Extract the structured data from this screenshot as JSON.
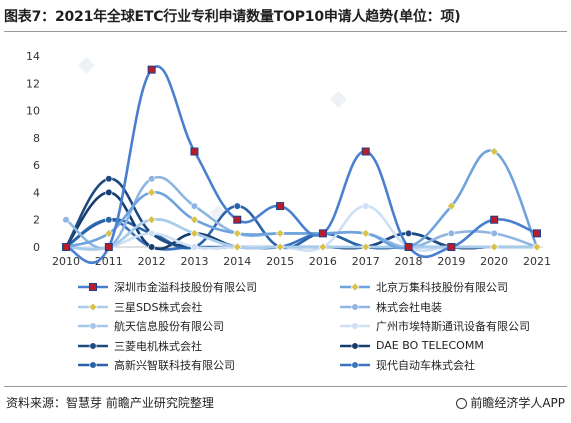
{
  "header": {
    "title": "图表7：2021年全球ETC行业专利申请数量TOP10申请人趋势(单位：项)"
  },
  "footer": {
    "source": "资料来源：智慧芽 前瞻产业研究院整理",
    "brand": "前瞻经济学人APP"
  },
  "chart_data": {
    "type": "line",
    "title": "图表7：2021年全球ETC行业专利申请数量TOP10申请人趋势(单位：项)",
    "x": [
      "2010",
      "2011",
      "2012",
      "2013",
      "2014",
      "2015",
      "2016",
      "2017",
      "2018",
      "2019",
      "2020",
      "2021"
    ],
    "ylim": [
      0,
      14
    ],
    "yticks": [
      0,
      2,
      4,
      6,
      8,
      10,
      12,
      14
    ],
    "grid": false,
    "legend_position": "bottom",
    "series": [
      {
        "name": "深圳市金溢科技股份有限公司",
        "color": "#4a7fd0",
        "marker": "square-red",
        "values": [
          0,
          0,
          13,
          7,
          2,
          3,
          1,
          7,
          0,
          0,
          2,
          1
        ]
      },
      {
        "name": "北京万集科技股份有限公司",
        "color": "#6fa3dd",
        "marker": "diamond-gold",
        "values": [
          0,
          1,
          4,
          2,
          1,
          1,
          1,
          1,
          0,
          3,
          7,
          0
        ]
      },
      {
        "name": "三星SDS株式会社",
        "color": "#a9cbec",
        "marker": "diamond-gold",
        "values": [
          0,
          0,
          2,
          1,
          0,
          0,
          0,
          0,
          0,
          0,
          0,
          0
        ]
      },
      {
        "name": "株式会社电装",
        "color": "#8fb6e2",
        "marker": "circle",
        "values": [
          2,
          0,
          5,
          3,
          1,
          1,
          1,
          1,
          0,
          1,
          1,
          0
        ]
      },
      {
        "name": "航天信息股份有限公司",
        "color": "#a4c6ea",
        "marker": "circle",
        "values": [
          0,
          0,
          2,
          1,
          0,
          0,
          0,
          0,
          0,
          0,
          0,
          0
        ]
      },
      {
        "name": "广州市埃特斯通讯设备有限公司",
        "color": "#cde0f5",
        "marker": "circle",
        "values": [
          0,
          0,
          1,
          0,
          0,
          0,
          0,
          3,
          0,
          0,
          0,
          0
        ]
      },
      {
        "name": "三菱电机株式会社",
        "color": "#1d4a80",
        "marker": "circle",
        "values": [
          0,
          5,
          1,
          0,
          0,
          0,
          0,
          0,
          1,
          0,
          0,
          0
        ]
      },
      {
        "name": "DAE BO TELECOMM",
        "color": "#163d70",
        "marker": "circle",
        "values": [
          0,
          4,
          0,
          1,
          0,
          0,
          0,
          0,
          1,
          0,
          0,
          0
        ]
      },
      {
        "name": "高新兴智联科技有限公司",
        "color": "#2a64a8",
        "marker": "circle",
        "values": [
          0,
          2,
          1,
          0,
          3,
          0,
          1,
          0,
          0,
          0,
          0,
          0
        ]
      },
      {
        "name": "现代自动车株式会社",
        "color": "#3b74be",
        "marker": "circle",
        "values": [
          0,
          2,
          0,
          0,
          0,
          0,
          1,
          0,
          0,
          0,
          0,
          0
        ]
      }
    ]
  }
}
